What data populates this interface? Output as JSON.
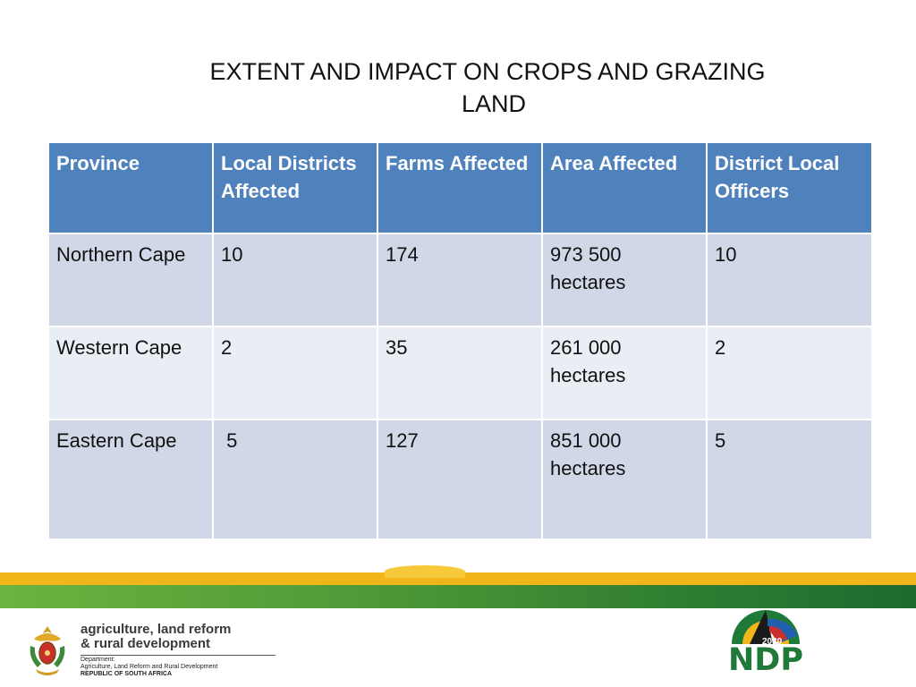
{
  "title": {
    "line1": "EXTENT AND IMPACT ON CROPS AND GRAZING",
    "line2": "LAND"
  },
  "table": {
    "headers": [
      "Province",
      "Local Districts Affected",
      "Farms Affected",
      "Area Affected",
      "District Local Officers"
    ],
    "rows": [
      {
        "province": "Northern Cape",
        "districts": "10",
        "farms": "174",
        "area_line1": "973 500",
        "area_line2": "hectares",
        "officers": "10"
      },
      {
        "province": "Western Cape",
        "districts": "2",
        "farms": "35",
        "area_line1": "261 000",
        "area_line2": "hectares",
        "officers": "2"
      },
      {
        "province": "Eastern Cape",
        "districts": " 5",
        "farms": "127",
        "area_line1": "851 000",
        "area_line2": "hectares",
        "officers": "5"
      }
    ]
  },
  "footer": {
    "dept_line1": "agriculture, land reform",
    "dept_line2": "& rural development",
    "dept_small1": "Department:",
    "dept_small2": "Agriculture, Land Reform and Rural Development",
    "dept_small3": "REPUBLIC OF SOUTH AFRICA",
    "ndp_text": "NDP",
    "ndp_year": "2030"
  },
  "colors": {
    "header_bg": "#4f81bd",
    "row_odd": "#d0d8e8",
    "row_even": "#e9edf4",
    "band_yellow": "#f2b51a",
    "band_green": "#2f7d32"
  },
  "icons": {
    "crest": "coat-of-arms-icon",
    "ndp_logo": "ndp-2030-logo"
  }
}
